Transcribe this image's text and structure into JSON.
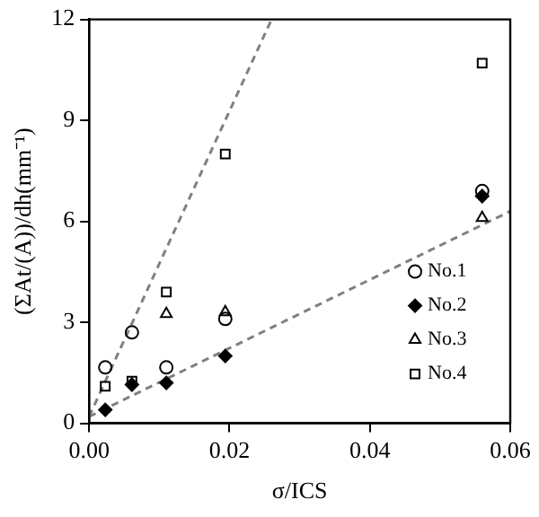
{
  "chart_data": {
    "type": "scatter",
    "xlabel": "σ/ICS",
    "ylabel": "(ΣAt/(A))/dh(mm⁻¹)",
    "x": [
      0.0023,
      0.0061,
      0.011,
      0.0194,
      0.056
    ],
    "xlim": [
      0,
      0.06
    ],
    "xticks": [
      {
        "value": 0,
        "label": "0.00"
      },
      0.02,
      0.04,
      {
        "value": 0.06,
        "label": "0.06"
      }
    ],
    "ylim": [
      0,
      12
    ],
    "yticks": [
      0,
      3,
      6,
      9,
      12
    ],
    "grid": false,
    "legend": "bottom right",
    "series": [
      {
        "name": "No.1",
        "color": "#000000",
        "marker": "circle",
        "values": [
          1.66,
          2.7,
          1.66,
          3.1,
          6.9
        ]
      },
      {
        "name": "No.2",
        "color": "#000000",
        "marker": "diamond",
        "values": [
          0.4,
          1.15,
          1.2,
          2.0,
          6.75
        ]
      },
      {
        "name": "No.3",
        "color": "#000000",
        "marker": "triangle",
        "values": [
          null,
          null,
          3.25,
          3.3,
          6.1
        ]
      },
      {
        "name": "No.4",
        "color": "#000000",
        "marker": "square",
        "values": [
          1.1,
          1.25,
          3.9,
          8.0,
          10.7
        ]
      },
      {
        "type": "line",
        "color": "#808080",
        "line_style": "dashed",
        "marker": "none",
        "x": [
          0,
          0.026
        ],
        "values": [
          0.2,
          12
        ]
      },
      {
        "type": "line",
        "color": "#808080",
        "line_style": "dashed",
        "marker": "none",
        "x": [
          0,
          0.06
        ],
        "values": [
          0.2,
          6.3
        ]
      }
    ]
  }
}
